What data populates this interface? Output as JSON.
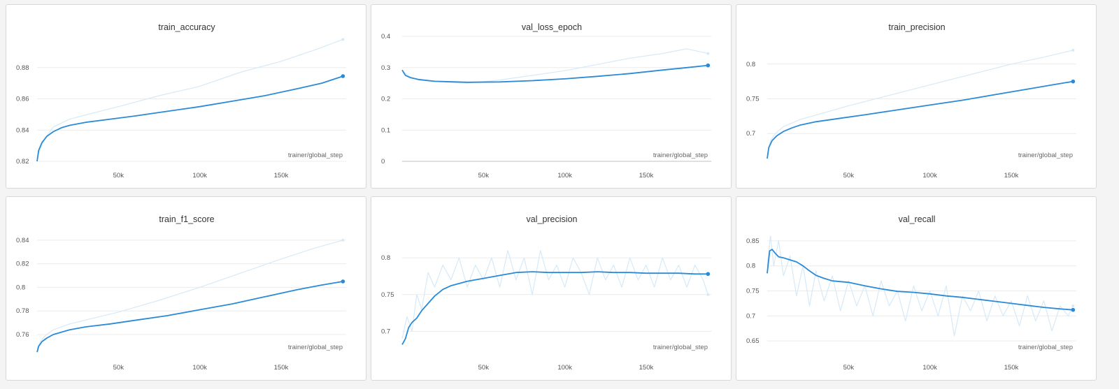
{
  "chart_data": [
    {
      "type": "line",
      "title": "train_accuracy",
      "xlabel": "trainer/global_step",
      "xlim": [
        0,
        190000
      ],
      "ylim": [
        0.82,
        0.9
      ],
      "xticks": [
        50000,
        100000,
        150000
      ],
      "xtick_labels": [
        "50k",
        "100k",
        "150k"
      ],
      "yticks": [
        0.82,
        0.84,
        0.86,
        0.88
      ],
      "ytick_labels": [
        "0.82",
        "0.84",
        "0.86",
        "0.88"
      ],
      "grid": true,
      "colors": {
        "smoothed": "#2a8ad8",
        "raw": "#d6e9f8"
      },
      "series": [
        {
          "role": "raw",
          "x": [
            0,
            2000,
            5000,
            10000,
            20000,
            35000,
            50000,
            75000,
            100000,
            125000,
            150000,
            170000,
            188000
          ],
          "y": [
            0.822,
            0.828,
            0.835,
            0.842,
            0.847,
            0.851,
            0.855,
            0.862,
            0.868,
            0.877,
            0.884,
            0.891,
            0.898
          ]
        },
        {
          "role": "smoothed",
          "x": [
            0,
            1000,
            3000,
            6000,
            10000,
            15000,
            20000,
            30000,
            45000,
            60000,
            80000,
            100000,
            120000,
            140000,
            160000,
            175000,
            188000
          ],
          "y": [
            0.82,
            0.827,
            0.832,
            0.836,
            0.839,
            0.8415,
            0.843,
            0.845,
            0.847,
            0.849,
            0.852,
            0.855,
            0.8585,
            0.862,
            0.8665,
            0.87,
            0.8745
          ]
        }
      ]
    },
    {
      "type": "line",
      "title": "val_loss_epoch",
      "xlabel": "trainer/global_step",
      "xlim": [
        0,
        190000
      ],
      "ylim": [
        0,
        0.4
      ],
      "xticks": [
        50000,
        100000,
        150000
      ],
      "xtick_labels": [
        "50k",
        "100k",
        "150k"
      ],
      "yticks": [
        0,
        0.1,
        0.2,
        0.3,
        0.4
      ],
      "ytick_labels": [
        "0",
        "0.1",
        "0.2",
        "0.3",
        "0.4"
      ],
      "grid": true,
      "colors": {
        "smoothed": "#2a8ad8",
        "raw": "#d6e9f8"
      },
      "series": [
        {
          "role": "raw",
          "x": [
            0,
            5000,
            10000,
            20000,
            40000,
            60000,
            80000,
            100000,
            120000,
            140000,
            160000,
            175000,
            188000
          ],
          "y": [
            0.29,
            0.27,
            0.26,
            0.255,
            0.25,
            0.26,
            0.275,
            0.29,
            0.31,
            0.33,
            0.345,
            0.36,
            0.345
          ]
        },
        {
          "role": "smoothed",
          "x": [
            0,
            2000,
            5000,
            10000,
            20000,
            40000,
            60000,
            80000,
            100000,
            120000,
            140000,
            160000,
            175000,
            188000
          ],
          "y": [
            0.292,
            0.275,
            0.268,
            0.262,
            0.256,
            0.253,
            0.254,
            0.258,
            0.264,
            0.272,
            0.281,
            0.292,
            0.3,
            0.307
          ]
        }
      ]
    },
    {
      "type": "line",
      "title": "train_precision",
      "xlabel": "trainer/global_step",
      "xlim": [
        0,
        190000
      ],
      "ylim": [
        0.66,
        0.84
      ],
      "xticks": [
        50000,
        100000,
        150000
      ],
      "xtick_labels": [
        "50k",
        "100k",
        "150k"
      ],
      "yticks": [
        0.7,
        0.75,
        0.8
      ],
      "ytick_labels": [
        "0.7",
        "0.75",
        "0.8"
      ],
      "grid": true,
      "colors": {
        "smoothed": "#2a8ad8",
        "raw": "#d6e9f8"
      },
      "series": [
        {
          "role": "raw",
          "x": [
            0,
            2000,
            5000,
            10000,
            20000,
            35000,
            50000,
            75000,
            100000,
            125000,
            150000,
            170000,
            188000
          ],
          "y": [
            0.67,
            0.69,
            0.7,
            0.71,
            0.72,
            0.73,
            0.74,
            0.755,
            0.77,
            0.785,
            0.8,
            0.81,
            0.82
          ]
        },
        {
          "role": "smoothed",
          "x": [
            0,
            1000,
            3000,
            6000,
            10000,
            15000,
            20000,
            30000,
            45000,
            60000,
            80000,
            100000,
            120000,
            140000,
            160000,
            175000,
            188000
          ],
          "y": [
            0.664,
            0.68,
            0.69,
            0.697,
            0.703,
            0.708,
            0.712,
            0.717,
            0.722,
            0.727,
            0.734,
            0.741,
            0.748,
            0.756,
            0.764,
            0.77,
            0.775
          ]
        }
      ]
    },
    {
      "type": "line",
      "title": "train_f1_score",
      "xlabel": "trainer/global_step",
      "xlim": [
        0,
        190000
      ],
      "ylim": [
        0.744,
        0.85
      ],
      "xticks": [
        50000,
        100000,
        150000
      ],
      "xtick_labels": [
        "50k",
        "100k",
        "150k"
      ],
      "yticks": [
        0.76,
        0.78,
        0.8,
        0.82,
        0.84
      ],
      "ytick_labels": [
        "0.76",
        "0.78",
        "0.8",
        "0.82",
        "0.84"
      ],
      "grid": true,
      "colors": {
        "smoothed": "#2a8ad8",
        "raw": "#d6e9f8"
      },
      "series": [
        {
          "role": "raw",
          "x": [
            0,
            2000,
            5000,
            10000,
            20000,
            35000,
            50000,
            75000,
            100000,
            125000,
            150000,
            170000,
            188000
          ],
          "y": [
            0.748,
            0.754,
            0.759,
            0.764,
            0.769,
            0.774,
            0.779,
            0.789,
            0.8,
            0.812,
            0.824,
            0.833,
            0.84
          ]
        },
        {
          "role": "smoothed",
          "x": [
            0,
            1000,
            3000,
            6000,
            10000,
            15000,
            20000,
            30000,
            45000,
            60000,
            80000,
            100000,
            120000,
            140000,
            160000,
            175000,
            188000
          ],
          "y": [
            0.745,
            0.75,
            0.754,
            0.757,
            0.76,
            0.762,
            0.764,
            0.7665,
            0.769,
            0.772,
            0.776,
            0.781,
            0.786,
            0.792,
            0.798,
            0.802,
            0.805
          ]
        }
      ]
    },
    {
      "type": "line",
      "title": "val_precision",
      "xlabel": "trainer/global_step",
      "xlim": [
        0,
        190000
      ],
      "ylim": [
        0.67,
        0.84
      ],
      "xticks": [
        50000,
        100000,
        150000
      ],
      "xtick_labels": [
        "50k",
        "100k",
        "150k"
      ],
      "yticks": [
        0.7,
        0.75,
        0.8
      ],
      "ytick_labels": [
        "0.7",
        "0.75",
        "0.8"
      ],
      "grid": true,
      "colors": {
        "smoothed": "#2a8ad8",
        "raw": "#d6e9f8"
      },
      "series": [
        {
          "role": "raw",
          "x": [
            0,
            3000,
            6000,
            9000,
            12000,
            16000,
            20000,
            25000,
            30000,
            35000,
            40000,
            45000,
            50000,
            55000,
            60000,
            65000,
            70000,
            75000,
            80000,
            85000,
            90000,
            95000,
            100000,
            105000,
            110000,
            115000,
            120000,
            125000,
            130000,
            135000,
            140000,
            145000,
            150000,
            155000,
            160000,
            165000,
            170000,
            175000,
            180000,
            185000,
            188000
          ],
          "y": [
            0.69,
            0.72,
            0.7,
            0.75,
            0.73,
            0.78,
            0.76,
            0.79,
            0.77,
            0.8,
            0.76,
            0.79,
            0.77,
            0.8,
            0.76,
            0.81,
            0.77,
            0.8,
            0.75,
            0.81,
            0.77,
            0.79,
            0.76,
            0.8,
            0.78,
            0.75,
            0.8,
            0.77,
            0.79,
            0.76,
            0.8,
            0.77,
            0.79,
            0.76,
            0.8,
            0.77,
            0.79,
            0.76,
            0.79,
            0.77,
            0.75
          ]
        },
        {
          "role": "smoothed",
          "x": [
            0,
            2000,
            4000,
            6000,
            9000,
            12000,
            16000,
            20000,
            25000,
            30000,
            40000,
            50000,
            60000,
            70000,
            80000,
            90000,
            100000,
            110000,
            120000,
            130000,
            140000,
            150000,
            160000,
            170000,
            180000,
            188000
          ],
          "y": [
            0.682,
            0.69,
            0.705,
            0.712,
            0.718,
            0.728,
            0.738,
            0.748,
            0.757,
            0.762,
            0.768,
            0.772,
            0.776,
            0.78,
            0.781,
            0.78,
            0.78,
            0.78,
            0.781,
            0.78,
            0.78,
            0.779,
            0.779,
            0.779,
            0.778,
            0.778
          ]
        }
      ]
    },
    {
      "type": "line",
      "title": "val_recall",
      "xlabel": "trainer/global_step",
      "xlim": [
        0,
        190000
      ],
      "ylim": [
        0.625,
        0.875
      ],
      "xticks": [
        50000,
        100000,
        150000
      ],
      "xtick_labels": [
        "50k",
        "100k",
        "150k"
      ],
      "yticks": [
        0.65,
        0.7,
        0.75,
        0.8,
        0.85
      ],
      "ytick_labels": [
        "0.65",
        "0.7",
        "0.75",
        "0.8",
        "0.85"
      ],
      "grid": true,
      "colors": {
        "smoothed": "#2a8ad8",
        "raw": "#d6e9f8"
      },
      "series": [
        {
          "role": "raw",
          "x": [
            0,
            2000,
            4000,
            7000,
            10000,
            14000,
            18000,
            22000,
            26000,
            30000,
            35000,
            40000,
            45000,
            50000,
            55000,
            60000,
            65000,
            70000,
            75000,
            80000,
            85000,
            90000,
            95000,
            100000,
            105000,
            110000,
            115000,
            120000,
            125000,
            130000,
            135000,
            140000,
            145000,
            150000,
            155000,
            160000,
            165000,
            170000,
            175000,
            180000,
            185000,
            188000
          ],
          "y": [
            0.8,
            0.86,
            0.8,
            0.85,
            0.78,
            0.82,
            0.74,
            0.8,
            0.72,
            0.79,
            0.73,
            0.78,
            0.71,
            0.77,
            0.72,
            0.76,
            0.7,
            0.77,
            0.72,
            0.75,
            0.69,
            0.76,
            0.71,
            0.75,
            0.7,
            0.76,
            0.66,
            0.74,
            0.71,
            0.75,
            0.69,
            0.74,
            0.7,
            0.73,
            0.68,
            0.74,
            0.69,
            0.73,
            0.67,
            0.72,
            0.7,
            0.72
          ]
        },
        {
          "role": "smoothed",
          "x": [
            0,
            1500,
            3000,
            5000,
            7000,
            10000,
            14000,
            18000,
            22000,
            26000,
            30000,
            35000,
            40000,
            50000,
            60000,
            70000,
            80000,
            90000,
            100000,
            110000,
            120000,
            130000,
            140000,
            150000,
            160000,
            170000,
            180000,
            188000
          ],
          "y": [
            0.785,
            0.83,
            0.833,
            0.825,
            0.818,
            0.816,
            0.812,
            0.808,
            0.8,
            0.79,
            0.781,
            0.775,
            0.77,
            0.767,
            0.76,
            0.754,
            0.749,
            0.747,
            0.744,
            0.74,
            0.737,
            0.733,
            0.729,
            0.725,
            0.721,
            0.717,
            0.714,
            0.712
          ]
        }
      ]
    }
  ]
}
